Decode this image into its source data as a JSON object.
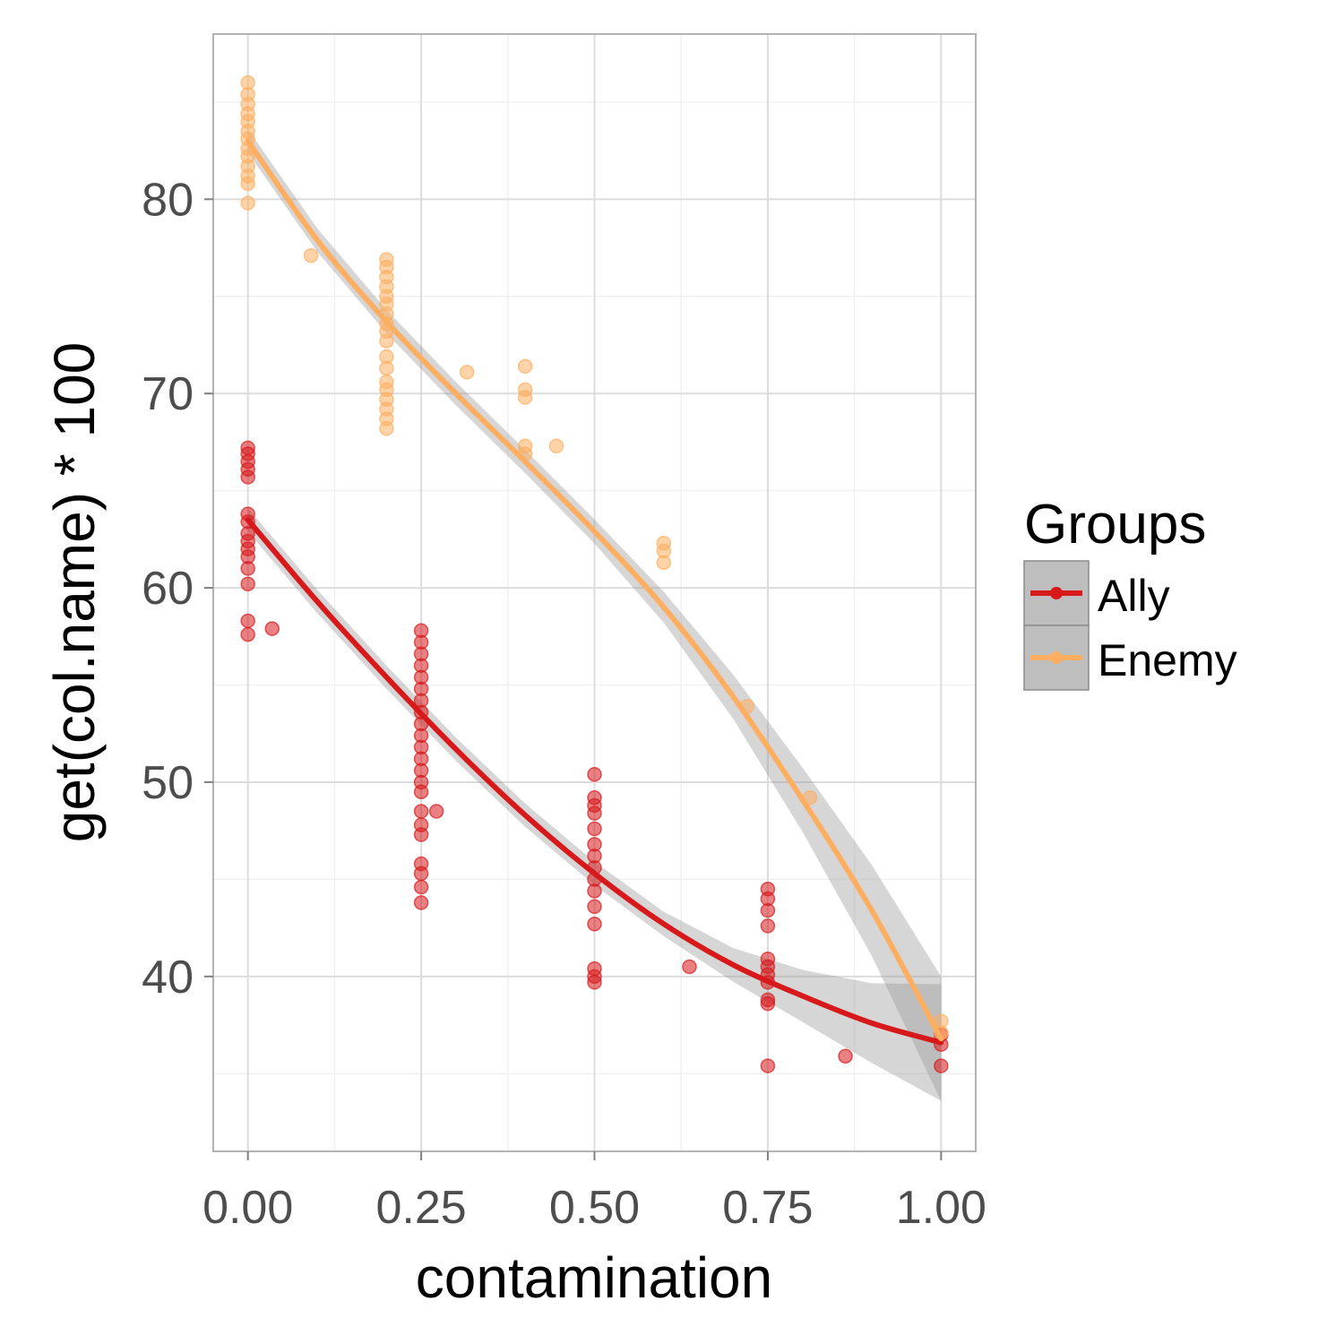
{
  "chart_data": {
    "type": "scatter",
    "xlabel": "contamination",
    "ylabel": "get(col.name) * 100",
    "xlim": [
      -0.05,
      1.05
    ],
    "ylim": [
      31.0,
      88.5
    ],
    "x_ticks": [
      0.0,
      0.25,
      0.5,
      0.75,
      1.0
    ],
    "x_tick_labels": [
      "0.00",
      "0.25",
      "0.50",
      "0.75",
      "1.00"
    ],
    "y_ticks": [
      40,
      50,
      60,
      70,
      80
    ],
    "y_tick_labels": [
      "40",
      "50",
      "60",
      "70",
      "80"
    ],
    "grid": true,
    "legend": {
      "title": "Groups",
      "position": "right"
    },
    "series": [
      {
        "name": "Ally",
        "color": "#d7191c",
        "points": [
          [
            0,
            67.2
          ],
          [
            0,
            66.9
          ],
          [
            0,
            66.5
          ],
          [
            0,
            66.1
          ],
          [
            0,
            65.7
          ],
          [
            0,
            63.8
          ],
          [
            0,
            63.4
          ],
          [
            0,
            62.8
          ],
          [
            0,
            62.4
          ],
          [
            0,
            62.0
          ],
          [
            0,
            61.6
          ],
          [
            0,
            61.0
          ],
          [
            0,
            60.2
          ],
          [
            0,
            58.3
          ],
          [
            0,
            57.6
          ],
          [
            0.035,
            57.9
          ],
          [
            0.25,
            57.8
          ],
          [
            0.25,
            57.2
          ],
          [
            0.25,
            56.6
          ],
          [
            0.25,
            56.0
          ],
          [
            0.25,
            55.4
          ],
          [
            0.25,
            54.8
          ],
          [
            0.25,
            54.2
          ],
          [
            0.25,
            53.6
          ],
          [
            0.25,
            53.0
          ],
          [
            0.25,
            52.4
          ],
          [
            0.25,
            51.8
          ],
          [
            0.25,
            51.2
          ],
          [
            0.25,
            50.6
          ],
          [
            0.25,
            50.0
          ],
          [
            0.25,
            49.5
          ],
          [
            0.25,
            48.5
          ],
          [
            0.25,
            47.8
          ],
          [
            0.25,
            47.3
          ],
          [
            0.25,
            45.8
          ],
          [
            0.25,
            45.3
          ],
          [
            0.25,
            44.6
          ],
          [
            0.25,
            43.8
          ],
          [
            0.272,
            48.5
          ],
          [
            0.5,
            50.4
          ],
          [
            0.5,
            49.2
          ],
          [
            0.5,
            48.8
          ],
          [
            0.5,
            48.4
          ],
          [
            0.5,
            47.6
          ],
          [
            0.5,
            46.8
          ],
          [
            0.5,
            46.2
          ],
          [
            0.5,
            45.6
          ],
          [
            0.5,
            45.0
          ],
          [
            0.5,
            44.4
          ],
          [
            0.5,
            43.6
          ],
          [
            0.5,
            42.7
          ],
          [
            0.5,
            40.4
          ],
          [
            0.5,
            40.0
          ],
          [
            0.5,
            39.7
          ],
          [
            0.637,
            40.5
          ],
          [
            0.75,
            44.5
          ],
          [
            0.75,
            44.0
          ],
          [
            0.75,
            43.4
          ],
          [
            0.75,
            42.6
          ],
          [
            0.75,
            40.9
          ],
          [
            0.75,
            40.5
          ],
          [
            0.75,
            40.1
          ],
          [
            0.75,
            39.7
          ],
          [
            0.75,
            38.8
          ],
          [
            0.75,
            38.6
          ],
          [
            0.75,
            35.4
          ],
          [
            0.862,
            35.9
          ],
          [
            1.0,
            37.0
          ],
          [
            1.0,
            36.5
          ],
          [
            1.0,
            35.4
          ]
        ],
        "fit": [
          [
            0,
            63.5
          ],
          [
            0.1,
            59.3
          ],
          [
            0.2,
            55.4
          ],
          [
            0.3,
            51.7
          ],
          [
            0.4,
            48.3
          ],
          [
            0.5,
            45.3
          ],
          [
            0.6,
            42.7
          ],
          [
            0.7,
            40.6
          ],
          [
            0.8,
            39.0
          ],
          [
            0.9,
            37.6
          ],
          [
            1.0,
            36.6
          ]
        ]
      },
      {
        "name": "Enemy",
        "color": "#fdae61",
        "points": [
          [
            0,
            86.0
          ],
          [
            0,
            85.4
          ],
          [
            0,
            84.9
          ],
          [
            0,
            84.4
          ],
          [
            0,
            84.0
          ],
          [
            0,
            83.5
          ],
          [
            0,
            83.1
          ],
          [
            0,
            82.6
          ],
          [
            0,
            82.2
          ],
          [
            0,
            81.7
          ],
          [
            0,
            81.2
          ],
          [
            0,
            80.8
          ],
          [
            0,
            79.8
          ],
          [
            0.091,
            77.1
          ],
          [
            0.2,
            76.9
          ],
          [
            0.2,
            76.5
          ],
          [
            0.2,
            76.0
          ],
          [
            0.2,
            75.5
          ],
          [
            0.2,
            75.0
          ],
          [
            0.2,
            74.6
          ],
          [
            0.2,
            74.1
          ],
          [
            0.2,
            73.6
          ],
          [
            0.2,
            73.2
          ],
          [
            0.2,
            72.7
          ],
          [
            0.2,
            71.9
          ],
          [
            0.2,
            71.3
          ],
          [
            0.2,
            70.6
          ],
          [
            0.2,
            70.2
          ],
          [
            0.2,
            69.7
          ],
          [
            0.2,
            69.2
          ],
          [
            0.2,
            68.7
          ],
          [
            0.2,
            68.2
          ],
          [
            0.316,
            71.1
          ],
          [
            0.4,
            71.4
          ],
          [
            0.4,
            70.2
          ],
          [
            0.4,
            69.8
          ],
          [
            0.4,
            67.3
          ],
          [
            0.4,
            66.9
          ],
          [
            0.445,
            67.3
          ],
          [
            0.6,
            62.3
          ],
          [
            0.6,
            61.9
          ],
          [
            0.6,
            61.3
          ],
          [
            0.72,
            53.9
          ],
          [
            0.811,
            49.2
          ],
          [
            1.0,
            37.7
          ],
          [
            1.0,
            37.1
          ]
        ],
        "fit": [
          [
            0,
            83.0
          ],
          [
            0.1,
            77.9
          ],
          [
            0.2,
            73.7
          ],
          [
            0.3,
            70.0
          ],
          [
            0.4,
            66.5
          ],
          [
            0.5,
            62.9
          ],
          [
            0.6,
            59.0
          ],
          [
            0.7,
            54.4
          ],
          [
            0.8,
            49.1
          ],
          [
            0.9,
            43.4
          ],
          [
            1.0,
            36.8
          ]
        ]
      }
    ]
  }
}
